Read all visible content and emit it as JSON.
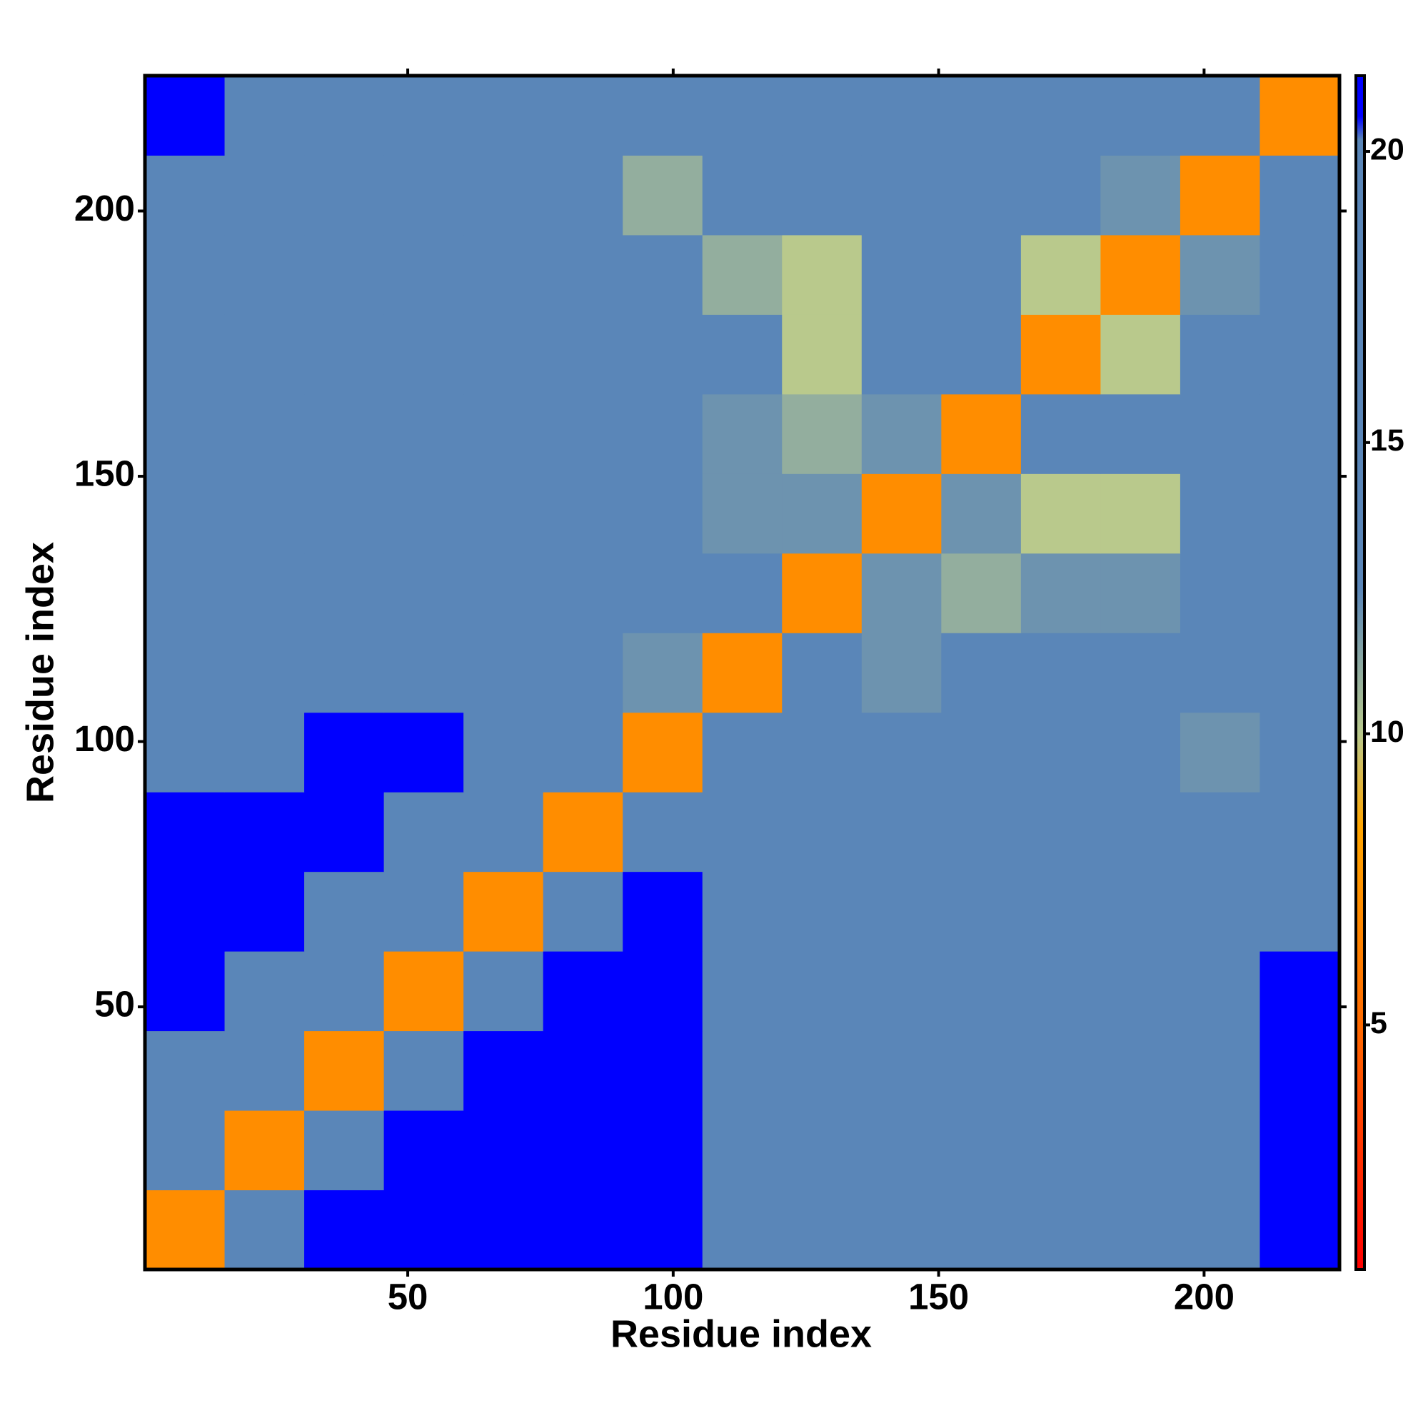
{
  "chart_data": {
    "type": "heatmap",
    "x_label": "Residue index",
    "y_label": "Residue index",
    "xlim": [
      0.5,
      225.5
    ],
    "ylim": [
      0.5,
      225.5
    ],
    "xticks": [
      50,
      100,
      150,
      200
    ],
    "yticks": [
      50,
      100,
      150,
      200
    ],
    "x_edges": [
      0.5,
      15.5,
      30.5,
      45.5,
      60.5,
      75.5,
      90.5,
      105.5,
      120.5,
      135.5,
      150.5,
      165.5,
      180.5,
      195.5,
      210.5,
      225.5
    ],
    "y_edges": [
      0.5,
      15.5,
      30.5,
      45.5,
      60.5,
      75.5,
      90.5,
      105.5,
      120.5,
      135.5,
      150.5,
      165.5,
      180.5,
      195.5,
      210.5,
      225.5
    ],
    "z": [
      [
        7,
        20,
        21,
        21,
        21,
        21,
        21,
        20,
        19,
        20,
        19,
        19,
        19,
        19,
        21
      ],
      [
        13,
        7,
        14,
        21,
        21,
        21,
        21,
        20,
        20,
        20,
        19,
        18,
        19,
        20,
        21
      ],
      [
        19,
        13,
        7,
        14,
        21,
        21,
        21,
        20,
        20,
        20,
        19,
        18,
        19,
        20,
        21
      ],
      [
        21,
        19,
        13,
        7,
        14,
        21,
        21,
        20,
        19,
        20,
        19,
        18,
        19,
        20,
        21
      ],
      [
        21,
        21,
        19,
        13,
        7,
        14,
        21,
        20,
        19,
        19,
        18,
        18,
        18,
        19,
        20
      ],
      [
        21,
        21,
        21,
        19,
        13,
        7,
        14,
        19,
        18,
        18,
        18,
        18,
        18,
        18,
        19
      ],
      [
        20,
        20,
        21,
        21,
        19,
        13,
        7,
        13,
        17,
        17,
        18,
        17,
        16,
        12,
        19
      ],
      [
        19,
        19,
        19,
        19,
        18,
        18,
        12,
        7,
        13,
        12,
        16,
        14,
        13,
        15,
        18
      ],
      [
        19,
        19,
        19,
        19,
        19,
        18,
        17,
        13,
        7,
        12,
        11,
        12,
        12,
        14,
        18
      ],
      [
        19,
        19,
        19,
        19,
        18,
        18,
        17,
        12,
        12,
        7,
        12,
        10,
        10,
        15,
        18
      ],
      [
        19,
        19,
        19,
        19,
        19,
        18,
        17,
        12,
        11,
        12,
        7,
        13,
        16,
        18,
        19
      ],
      [
        20,
        19,
        19,
        19,
        19,
        18,
        16,
        13,
        10,
        14,
        13,
        7,
        10,
        16,
        19
      ],
      [
        20,
        19,
        19,
        19,
        19,
        17,
        15,
        11,
        10,
        16,
        17,
        10,
        7,
        12,
        18
      ],
      [
        20,
        19,
        19,
        19,
        19,
        14,
        11,
        14,
        16,
        18,
        18,
        16,
        12,
        7,
        13
      ],
      [
        21,
        20,
        20,
        20,
        19,
        13,
        16,
        18,
        18,
        19,
        19,
        19,
        18,
        13,
        7
      ]
    ],
    "colorbar_lim": [
      0.8,
      21.3
    ],
    "colorbar_ticks": [
      5,
      10,
      15,
      20
    ],
    "color_stops": [
      {
        "value": 0.8,
        "color": "#ff0000"
      },
      {
        "value": 5,
        "color": "#ff6a00"
      },
      {
        "value": 8.4,
        "color": "#ffa500"
      },
      {
        "value": 10,
        "color": "#b9c98c"
      },
      {
        "value": 12.5,
        "color": "#5a86b8"
      },
      {
        "value": 20.2,
        "color": "#5a86b8"
      },
      {
        "value": 20.6,
        "color": "#0000ff"
      },
      {
        "value": 21.3,
        "color": "#0000ff"
      }
    ]
  }
}
